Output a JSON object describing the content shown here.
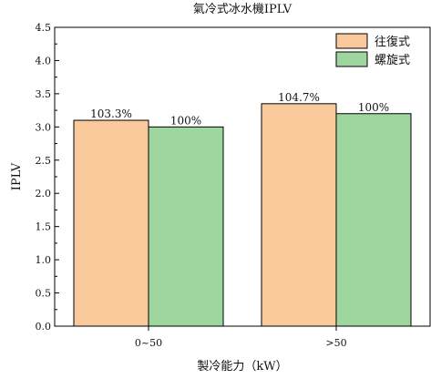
{
  "chart_data": {
    "type": "bar",
    "title": "氣冷式冰水機IPLV",
    "xlabel": "製冷能力（kW）",
    "ylabel": "IPLV",
    "categories": [
      "0~50",
      ">50"
    ],
    "ylim": [
      0,
      4.5
    ],
    "yticks": [
      "0.0",
      "0.5",
      "1.0",
      "1.5",
      "2.0",
      "2.5",
      "3.0",
      "3.5",
      "4.0",
      "4.5"
    ],
    "series": [
      {
        "name": "往復式",
        "values": [
          3.1,
          3.35
        ],
        "labels": [
          "103.3%",
          "104.7%"
        ],
        "color": "#F9C89B"
      },
      {
        "name": "螺旋式",
        "values": [
          3.0,
          3.2
        ],
        "labels": [
          "100%",
          "100%"
        ],
        "color": "#9ED6A0"
      }
    ],
    "legend": "top-right",
    "grid": false
  }
}
